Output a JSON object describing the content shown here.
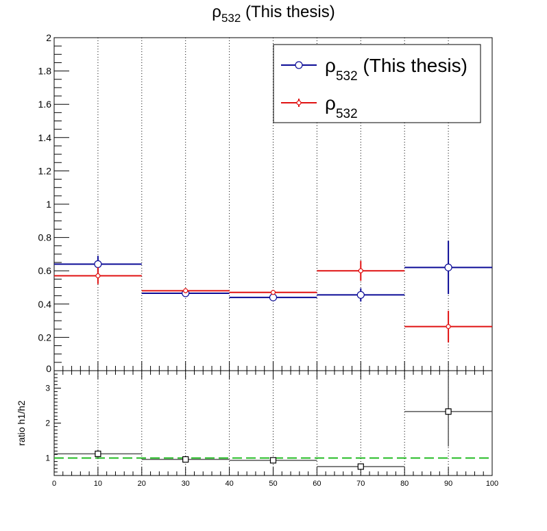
{
  "chart_data": [
    {
      "type": "histogram-errorbar",
      "title_main": "ρ",
      "title_sub": "532",
      "title_tail": " (This thesis)",
      "xlim": [
        0,
        100
      ],
      "ylim": [
        0,
        2
      ],
      "yticks": [
        "0.2",
        "0.4",
        "0.6",
        "0.8",
        "1",
        "1.2",
        "1.4",
        "1.6",
        "1.8",
        "2"
      ],
      "grid": "vertical dotted",
      "legend_position": "top-right",
      "bins": [
        [
          0,
          20
        ],
        [
          20,
          40
        ],
        [
          40,
          60
        ],
        [
          60,
          80
        ],
        [
          80,
          100
        ]
      ],
      "series": [
        {
          "legend_main": "ρ",
          "legend_sub": "532",
          "legend_tail": " (This thesis)",
          "marker": "open-circle",
          "color": "#0a0a96",
          "x": [
            10,
            30,
            50,
            70,
            90
          ],
          "values": [
            0.64,
            0.465,
            0.44,
            0.455,
            0.62
          ],
          "errors": [
            0.05,
            0.015,
            0.015,
            0.04,
            0.16
          ]
        },
        {
          "legend_main": "ρ",
          "legend_sub": "532",
          "legend_tail": "",
          "marker": "open-circle-small",
          "color": "#e01010",
          "x": [
            10,
            30,
            50,
            70,
            90
          ],
          "values": [
            0.57,
            0.48,
            0.47,
            0.6,
            0.265
          ],
          "errors": [
            0.05,
            0.015,
            0.015,
            0.06,
            0.095
          ]
        }
      ]
    },
    {
      "type": "ratio",
      "ylabel": "ratio h1/h2",
      "xlim": [
        0,
        100
      ],
      "ylim": [
        0.5,
        3.5
      ],
      "xticks": [
        "0",
        "10",
        "20",
        "30",
        "40",
        "50",
        "60",
        "70",
        "80",
        "90",
        "100"
      ],
      "yticks": [
        "1",
        "2",
        "3"
      ],
      "reference_line": 1,
      "reference_color": "#22bb22",
      "series": [
        {
          "marker": "open-square",
          "color": "#000000",
          "x": [
            10,
            30,
            50,
            70,
            90
          ],
          "values": [
            1.12,
            0.96,
            0.935,
            0.755,
            2.33
          ],
          "errors": [
            0.12,
            0.05,
            0.05,
            0.09,
            1.0
          ]
        }
      ]
    }
  ]
}
